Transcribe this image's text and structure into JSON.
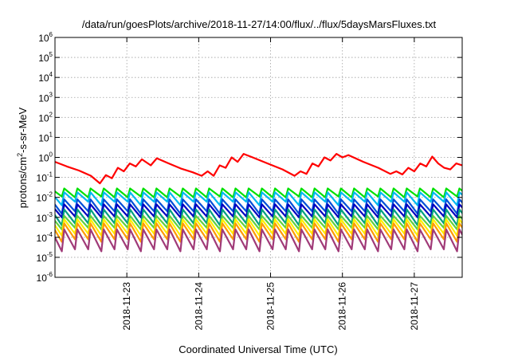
{
  "chart_data": {
    "type": "line",
    "title": "/data/run/goesPlots/archive/2018-11-27/14:00/flux/../flux/5daysMarsFluxes.txt",
    "xlabel": "Coordinated Universal Time (UTC)",
    "ylabel": {
      "base": "protons/cm",
      "exp": "2",
      "rest": "-s-sr-MeV"
    },
    "y_scale": "log",
    "ylim": [
      1e-06,
      1000000.0
    ],
    "y_ticks": [
      {
        "value": 1e-06,
        "base": "10",
        "exp": "-6"
      },
      {
        "value": 1e-05,
        "base": "10",
        "exp": "-5"
      },
      {
        "value": 0.0001,
        "base": "10",
        "exp": "-4"
      },
      {
        "value": 0.001,
        "base": "10",
        "exp": "-3"
      },
      {
        "value": 0.01,
        "base": "10",
        "exp": "-2"
      },
      {
        "value": 0.1,
        "base": "10",
        "exp": "-1"
      },
      {
        "value": 1,
        "base": "10",
        "exp": "0"
      },
      {
        "value": 10.0,
        "base": "10",
        "exp": "1"
      },
      {
        "value": 100.0,
        "base": "10",
        "exp": "2"
      },
      {
        "value": 1000.0,
        "base": "10",
        "exp": "3"
      },
      {
        "value": 10000.0,
        "base": "10",
        "exp": "4"
      },
      {
        "value": 100000.0,
        "base": "10",
        "exp": "5"
      },
      {
        "value": 1000000.0,
        "base": "10",
        "exp": "6"
      }
    ],
    "x_type": "date",
    "xlim": [
      "2018-11-22T00:00",
      "2018-11-27T16:00"
    ],
    "x_ticks": [
      "2018-11-23",
      "2018-11-24",
      "2018-11-25",
      "2018-11-26",
      "2018-11-27"
    ],
    "grid": true,
    "legend": "none",
    "series": [
      {
        "color": "#ff0000",
        "points": [
          [
            "2018-11-22T00:00",
            0.6
          ],
          [
            "2018-11-22T04:00",
            0.35
          ],
          [
            "2018-11-22T08:00",
            0.22
          ],
          [
            "2018-11-22T12:00",
            0.12
          ],
          [
            "2018-11-22T15:00",
            0.05
          ],
          [
            "2018-11-22T17:00",
            0.13
          ],
          [
            "2018-11-22T19:00",
            0.09
          ],
          [
            "2018-11-22T21:00",
            0.3
          ],
          [
            "2018-11-22T23:00",
            0.2
          ],
          [
            "2018-11-23T01:00",
            0.5
          ],
          [
            "2018-11-23T03:00",
            0.35
          ],
          [
            "2018-11-23T05:00",
            0.8
          ],
          [
            "2018-11-23T08:00",
            0.4
          ],
          [
            "2018-11-23T10:00",
            0.9
          ],
          [
            "2018-11-23T14:00",
            0.5
          ],
          [
            "2018-11-23T18:00",
            0.28
          ],
          [
            "2018-11-23T22:00",
            0.18
          ],
          [
            "2018-11-24T01:00",
            0.12
          ],
          [
            "2018-11-24T03:00",
            0.2
          ],
          [
            "2018-11-24T05:00",
            0.12
          ],
          [
            "2018-11-24T07:00",
            0.4
          ],
          [
            "2018-11-24T09:00",
            0.3
          ],
          [
            "2018-11-24T11:00",
            1.0
          ],
          [
            "2018-11-24T13:00",
            0.6
          ],
          [
            "2018-11-24T15:00",
            1.5
          ],
          [
            "2018-11-24T18:00",
            1.0
          ],
          [
            "2018-11-24T23:00",
            0.5
          ],
          [
            "2018-11-25T04:00",
            0.25
          ],
          [
            "2018-11-25T08:00",
            0.12
          ],
          [
            "2018-11-25T10:00",
            0.2
          ],
          [
            "2018-11-25T12:00",
            0.15
          ],
          [
            "2018-11-25T14:00",
            0.5
          ],
          [
            "2018-11-25T16:00",
            0.35
          ],
          [
            "2018-11-25T18:00",
            1.0
          ],
          [
            "2018-11-25T20:00",
            0.7
          ],
          [
            "2018-11-25T22:00",
            1.5
          ],
          [
            "2018-11-26T00:00",
            1.0
          ],
          [
            "2018-11-26T02:00",
            1.3
          ],
          [
            "2018-11-26T07:00",
            0.6
          ],
          [
            "2018-11-26T12:00",
            0.3
          ],
          [
            "2018-11-26T16:00",
            0.15
          ],
          [
            "2018-11-26T18:00",
            0.2
          ],
          [
            "2018-11-26T20:00",
            0.14
          ],
          [
            "2018-11-26T22:00",
            0.3
          ],
          [
            "2018-11-27T00:00",
            0.2
          ],
          [
            "2018-11-27T02:00",
            0.5
          ],
          [
            "2018-11-27T04:00",
            0.35
          ],
          [
            "2018-11-27T06:00",
            1.1
          ],
          [
            "2018-11-27T08:00",
            0.5
          ],
          [
            "2018-11-27T10:00",
            0.3
          ],
          [
            "2018-11-27T12:00",
            0.25
          ],
          [
            "2018-11-27T14:00",
            0.5
          ],
          [
            "2018-11-27T16:00",
            0.4
          ]
        ]
      },
      {
        "color": "#00e000",
        "base": 0.028,
        "low": 0.01,
        "lowest": 0.011
      },
      {
        "color": "#00b8f0",
        "base": 0.018,
        "low": 0.006,
        "lowest": 0.004
      },
      {
        "color": "#0050d8",
        "base": 0.008,
        "low": 0.002,
        "lowest": 0.0015
      },
      {
        "color": "#0000c0",
        "base": 0.0045,
        "low": 0.0011,
        "lowest": 0.001
      },
      {
        "color": "#00a080",
        "base": 0.0025,
        "low": 0.0005,
        "lowest": 0.0004
      },
      {
        "color": "#60d040",
        "base": 0.0012,
        "low": 0.0003,
        "lowest": 0.00025
      },
      {
        "color": "#ffee00",
        "base": 0.0008,
        "low": 0.00015,
        "lowest": 0.00012
      },
      {
        "color": "#ff9a00",
        "base": 0.0005,
        "low": 8e-05,
        "lowest": 6e-05
      },
      {
        "color": "#a03a78",
        "base": 0.00025,
        "low": 2.5e-05,
        "lowest": 2e-05
      }
    ],
    "spike_period_hours": 4.4
  }
}
